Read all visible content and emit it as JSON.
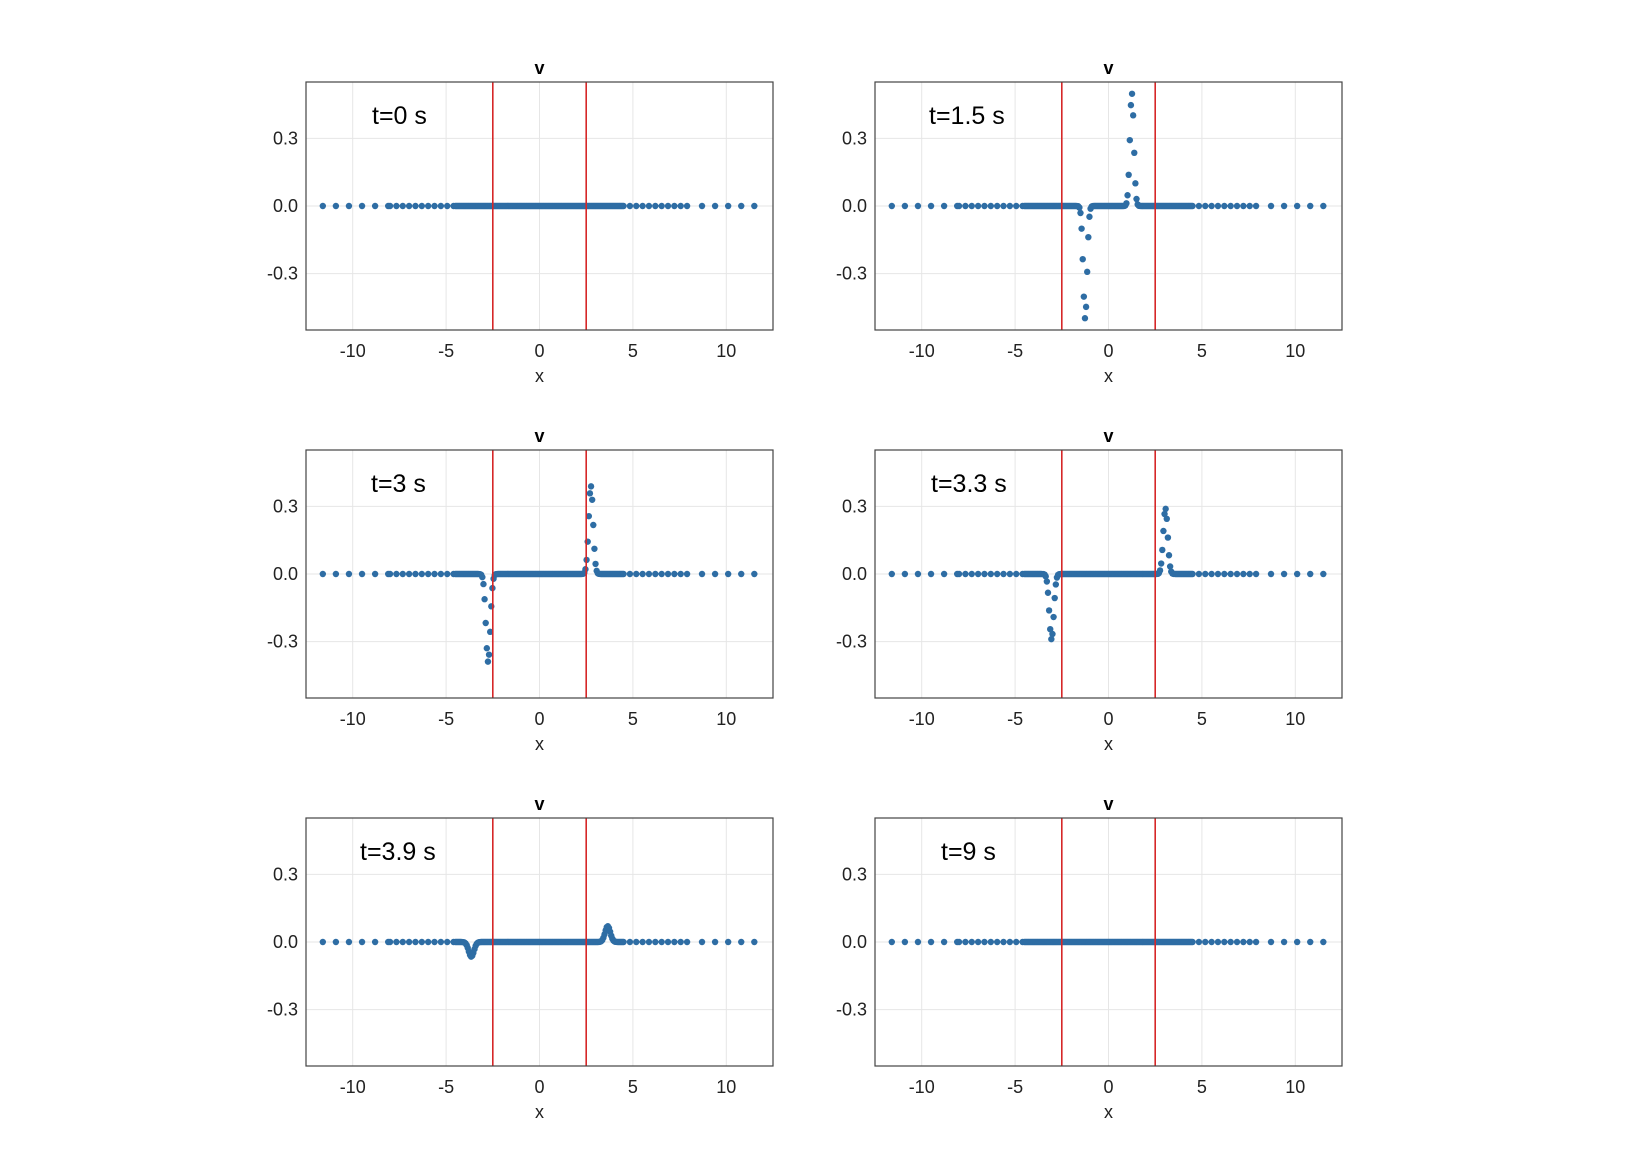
{
  "figure": {
    "description_colors": {
      "marker": "#2e6da4",
      "vertical_line": "#d62728",
      "grid": "#e6e6e6",
      "frame": "#444444"
    }
  },
  "chart_data": [
    {
      "type": "scatter",
      "title": "v",
      "xlabel": "x",
      "ylabel": "",
      "annotation": "t=0 s",
      "xlim": [
        -12.5,
        12.5
      ],
      "ylim": [
        -0.55,
        0.55
      ],
      "xticks": [
        -10,
        -5,
        0,
        5,
        10
      ],
      "xtick_labels": [
        "-10",
        "-5",
        "0",
        "5",
        "10"
      ],
      "yticks": [
        -0.3,
        0.0,
        0.3
      ],
      "ytick_labels": [
        "-0.3",
        "0.0",
        "0.3"
      ],
      "grid": true,
      "vlines": [
        -2.5,
        2.5
      ],
      "pulses": []
    },
    {
      "type": "scatter",
      "title": "v",
      "xlabel": "x",
      "ylabel": "",
      "annotation": "t=1.5 s",
      "xlim": [
        -12.5,
        12.5
      ],
      "ylim": [
        -0.55,
        0.55
      ],
      "xticks": [
        -10,
        -5,
        0,
        5,
        10
      ],
      "xtick_labels": [
        "-10",
        "-5",
        "0",
        "5",
        "10"
      ],
      "yticks": [
        -0.3,
        0.0,
        0.3
      ],
      "ytick_labels": [
        "-0.3",
        "0.0",
        "0.3"
      ],
      "grid": true,
      "vlines": [
        -2.5,
        2.5
      ],
      "pulses": [
        {
          "center": -1.25,
          "amp": -0.5,
          "width": 0.15
        },
        {
          "center": 1.25,
          "amp": 0.5,
          "width": 0.15
        }
      ]
    },
    {
      "type": "scatter",
      "title": "v",
      "xlabel": "x",
      "ylabel": "",
      "annotation": "t=3 s",
      "xlim": [
        -12.5,
        12.5
      ],
      "ylim": [
        -0.55,
        0.55
      ],
      "xticks": [
        -10,
        -5,
        0,
        5,
        10
      ],
      "xtick_labels": [
        "-10",
        "-5",
        "0",
        "5",
        "10"
      ],
      "yticks": [
        -0.3,
        0.0,
        0.3
      ],
      "ytick_labels": [
        "-0.3",
        "0.0",
        "0.3"
      ],
      "grid": true,
      "vlines": [
        -2.5,
        2.5
      ],
      "pulses": [
        {
          "center": -2.75,
          "amp": -0.39,
          "width": 0.17
        },
        {
          "center": 2.75,
          "amp": 0.39,
          "width": 0.17
        }
      ]
    },
    {
      "type": "scatter",
      "title": "v",
      "xlabel": "x",
      "ylabel": "",
      "annotation": "t=3.3 s",
      "xlim": [
        -12.5,
        12.5
      ],
      "ylim": [
        -0.55,
        0.55
      ],
      "xticks": [
        -10,
        -5,
        0,
        5,
        10
      ],
      "xtick_labels": [
        "-10",
        "-5",
        "0",
        "5",
        "10"
      ],
      "yticks": [
        -0.3,
        0.0,
        0.3
      ],
      "ytick_labels": [
        "-0.3",
        "0.0",
        "0.3"
      ],
      "grid": true,
      "vlines": [
        -2.5,
        2.5
      ],
      "pulses": [
        {
          "center": -3.05,
          "amp": -0.29,
          "width": 0.17
        },
        {
          "center": 3.05,
          "amp": 0.29,
          "width": 0.17
        }
      ]
    },
    {
      "type": "scatter",
      "title": "v",
      "xlabel": "x",
      "ylabel": "",
      "annotation": "t=3.9 s",
      "xlim": [
        -12.5,
        12.5
      ],
      "ylim": [
        -0.55,
        0.55
      ],
      "xticks": [
        -10,
        -5,
        0,
        5,
        10
      ],
      "xtick_labels": [
        "-10",
        "-5",
        "0",
        "5",
        "10"
      ],
      "yticks": [
        -0.3,
        0.0,
        0.3
      ],
      "ytick_labels": [
        "-0.3",
        "0.0",
        "0.3"
      ],
      "grid": true,
      "vlines": [
        -2.5,
        2.5
      ],
      "pulses": [
        {
          "center": -3.65,
          "amp": -0.065,
          "width": 0.2
        },
        {
          "center": 3.65,
          "amp": 0.07,
          "width": 0.2
        }
      ]
    },
    {
      "type": "scatter",
      "title": "v",
      "xlabel": "x",
      "ylabel": "",
      "annotation": "t=9 s",
      "xlim": [
        -12.5,
        12.5
      ],
      "ylim": [
        -0.55,
        0.55
      ],
      "xticks": [
        -10,
        -5,
        0,
        5,
        10
      ],
      "xtick_labels": [
        "-10",
        "-5",
        "0",
        "5",
        "10"
      ],
      "yticks": [
        -0.3,
        0.0,
        0.3
      ],
      "ytick_labels": [
        "-0.3",
        "0.0",
        "0.3"
      ],
      "grid": true,
      "vlines": [
        -2.5,
        2.5
      ],
      "pulses": []
    }
  ]
}
